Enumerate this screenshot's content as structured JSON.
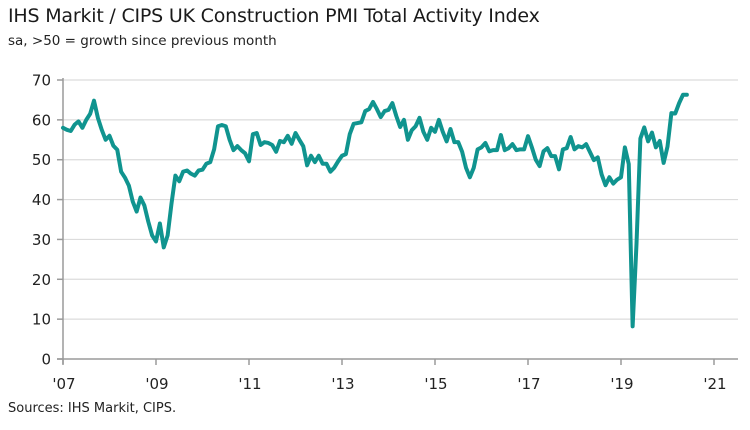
{
  "chart_data": {
    "type": "line",
    "title": "IHS Markit / CIPS UK Construction PMI Total Activity Index",
    "subtitle": "sa, >50 = growth since previous month",
    "xlabel": "",
    "ylabel": "",
    "ylim": [
      0,
      70
    ],
    "yticks": [
      0,
      10,
      20,
      30,
      40,
      50,
      60,
      70
    ],
    "xticks": [
      "'07",
      "'09",
      "'11",
      "'13",
      "'15",
      "'17",
      "'19",
      "'21"
    ],
    "xtick_years": [
      2007,
      2009,
      2011,
      2013,
      2015,
      2017,
      2019,
      2021
    ],
    "x_start": "2007-01",
    "x_end": "2021-06",
    "grid": true,
    "legend": "none",
    "line_color": "#10948f",
    "series": [
      {
        "name": "UK Construction PMI Total Activity Index",
        "frequency": "monthly",
        "values": [
          58.0,
          57.5,
          57.2,
          58.8,
          59.6,
          58.0,
          60.0,
          61.5,
          64.8,
          60.5,
          57.5,
          55.0,
          56.0,
          53.5,
          52.5,
          47.0,
          45.5,
          43.5,
          39.5,
          37.0,
          40.5,
          38.5,
          34.5,
          31.0,
          29.5,
          34.0,
          28.0,
          31.0,
          39.0,
          46.0,
          44.6,
          47.0,
          47.3,
          46.5,
          46.0,
          47.3,
          47.5,
          49.0,
          49.4,
          52.6,
          58.4,
          58.7,
          58.4,
          55.0,
          52.4,
          53.4,
          52.4,
          51.6,
          49.6,
          56.4,
          56.7,
          53.7,
          54.4,
          54.2,
          53.7,
          52.0,
          54.7,
          54.4,
          56.0,
          54.0,
          56.7,
          55.0,
          53.4,
          48.6,
          51.0,
          49.4,
          51.0,
          49.0,
          49.0,
          47.0,
          48.0,
          49.6,
          51.0,
          51.4,
          56.4,
          59.0,
          59.2,
          59.4,
          62.2,
          62.7,
          64.5,
          62.7,
          60.7,
          62.2,
          62.5,
          64.2,
          61.0,
          58.2,
          60.0,
          55.0,
          57.4,
          58.4,
          60.5,
          57.0,
          55.0,
          58.0,
          57.0,
          60.0,
          57.0,
          54.6,
          57.7,
          54.4,
          54.4,
          52.0,
          48.0,
          45.6,
          48.0,
          52.6,
          53.1,
          54.2,
          52.1,
          52.4,
          52.4,
          56.2,
          52.4,
          52.9,
          53.9,
          52.4,
          52.6,
          52.6,
          55.9,
          53.1,
          50.0,
          48.4,
          52.1,
          52.9,
          50.9,
          50.9,
          47.6,
          52.6,
          52.9,
          55.7,
          52.6,
          53.4,
          53.1,
          53.9,
          51.9,
          49.9,
          50.6,
          46.3,
          43.6,
          45.6,
          44.0,
          45.0,
          45.6,
          53.1,
          48.9,
          8.2,
          28.9,
          55.3,
          58.1,
          54.6,
          56.8,
          53.1,
          54.7,
          49.2,
          53.3,
          61.7,
          61.6,
          64.2,
          66.3,
          66.3
        ]
      }
    ]
  },
  "footer": {
    "source": "Sources: IHS Markit, CIPS."
  }
}
